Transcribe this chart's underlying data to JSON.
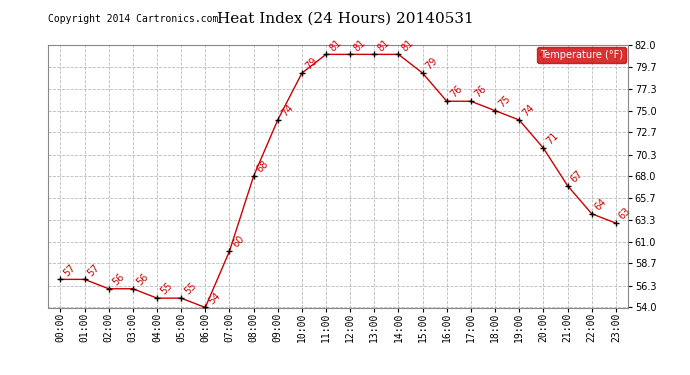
{
  "title": "Heat Index (24 Hours) 20140531",
  "copyright": "Copyright 2014 Cartronics.com",
  "legend_label": "Temperature (°F)",
  "times": [
    "00:00",
    "01:00",
    "02:00",
    "03:00",
    "04:00",
    "05:00",
    "06:00",
    "07:00",
    "08:00",
    "09:00",
    "10:00",
    "11:00",
    "12:00",
    "13:00",
    "14:00",
    "15:00",
    "16:00",
    "17:00",
    "18:00",
    "19:00",
    "20:00",
    "21:00",
    "22:00",
    "23:00"
  ],
  "values": [
    57,
    57,
    56,
    56,
    55,
    55,
    54,
    60,
    68,
    74,
    79,
    81,
    81,
    81,
    81,
    79,
    76,
    76,
    75,
    74,
    71,
    67,
    64,
    63
  ],
  "line_color": "#cc0000",
  "marker_color": "#000000",
  "label_color": "#cc0000",
  "background_color": "#ffffff",
  "grid_color": "#bbbbbb",
  "ylim_min": 54.0,
  "ylim_max": 82.0,
  "ytick_values": [
    54.0,
    56.3,
    58.7,
    61.0,
    63.3,
    65.7,
    68.0,
    70.3,
    72.7,
    75.0,
    77.3,
    79.7,
    82.0
  ],
  "ytick_labels": [
    "54.0",
    "56.3",
    "58.7",
    "61.0",
    "63.3",
    "65.7",
    "68.0",
    "70.3",
    "72.7",
    "75.0",
    "77.3",
    "79.7",
    "82.0"
  ],
  "title_fontsize": 11,
  "copyright_fontsize": 7,
  "label_fontsize": 7,
  "tick_fontsize": 7,
  "legend_bg": "#cc0000",
  "legend_text_color": "#ffffff",
  "legend_fontsize": 7
}
